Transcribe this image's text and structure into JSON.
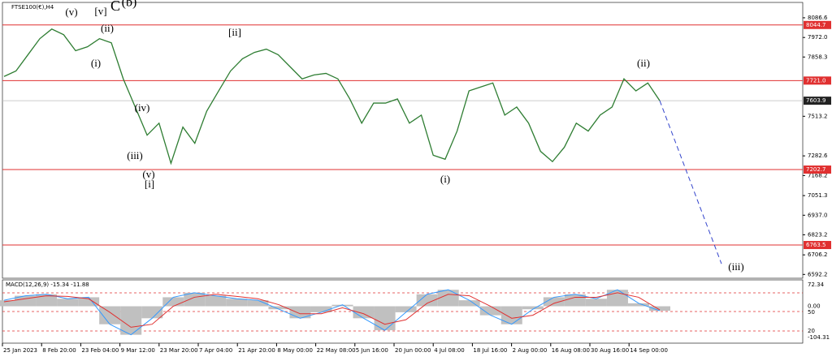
{
  "chart_data": {
    "type": "line",
    "title": "FTSE100(€),H4",
    "color": "#2e7d32",
    "values": [
      7745,
      7777,
      7871,
      7965,
      8021,
      7988,
      7895,
      7918,
      7965,
      7941,
      7731,
      7567,
      7403,
      7473,
      7239,
      7450,
      7356,
      7543,
      7661,
      7777,
      7848,
      7885,
      7904,
      7871,
      7801,
      7731,
      7754,
      7763,
      7731,
      7614,
      7473,
      7590,
      7590,
      7614,
      7473,
      7520,
      7286,
      7263,
      7427,
      7661,
      7684,
      7707,
      7520,
      7567,
      7473,
      7309,
      7249,
      7333,
      7473,
      7427,
      7520,
      7567,
      7731,
      7661,
      7707,
      7604
    ],
    "projection": [
      7604,
      6654
    ],
    "projection_color": "#3344cc",
    "ylim": [
      6570,
      8176
    ],
    "yticks": [
      8086.6,
      {
        "value": 7972,
        "label": "7972.0"
      },
      7858.3,
      7513.2,
      7282.6,
      7168.2,
      7051.3,
      {
        "value": 6937,
        "label": "6937.0"
      },
      6823.2,
      6706.2,
      6592.2
    ],
    "levels": [
      8044.7,
      {
        "value": 7721,
        "label": "7721.0"
      },
      7202.7,
      6763.5
    ],
    "level_color": "#e03030",
    "current_price": 7603.9,
    "x_labels": [
      "25 Jan 2023",
      "8 Feb 20:00",
      "23 Feb 04:00",
      "9 Mar 12:00",
      "23 Mar 20:00",
      "7 Apr 04:00",
      "21 Apr 20:00",
      "8 May 00:00",
      "22 May 08:00",
      "5 Jun 16:00",
      "20 Jun 00:00",
      "4 Jul 08:00",
      "18 Jul 16:00",
      "2 Aug 00:00",
      "16 Aug 08:00",
      "30 Aug 16:00",
      "14 Sep 00:00"
    ],
    "waves": [
      "(v)",
      "[v]",
      "C",
      "(b)",
      "(ii)",
      "(i)",
      "(iv)",
      "(iii)",
      "(v)",
      "[i]",
      "[ii]",
      "(i)",
      "(ii)",
      "(iii)"
    ],
    "macd": {
      "label": "MACD(12,26,9) -15.34 -11.88",
      "ylim": [
        -123,
        88
      ],
      "yticks": [
        72.34,
        {
          "value": 0,
          "label": "0.00"
        },
        -104.31
      ],
      "level_labels": [
        "50",
        "20"
      ],
      "macd": [
        20,
        35,
        40,
        25,
        30,
        -60,
        -95,
        -40,
        30,
        45,
        35,
        25,
        20,
        -10,
        -40,
        -20,
        5,
        -40,
        -80,
        -20,
        40,
        55,
        20,
        -30,
        -60,
        -10,
        30,
        40,
        25,
        55,
        10,
        -15
      ],
      "signal": [
        15,
        25,
        35,
        33,
        25,
        -20,
        -70,
        -60,
        0,
        30,
        40,
        33,
        25,
        5,
        -25,
        -25,
        -5,
        -25,
        -60,
        -45,
        10,
        40,
        35,
        0,
        -40,
        -30,
        10,
        30,
        30,
        45,
        30,
        -12
      ]
    }
  }
}
